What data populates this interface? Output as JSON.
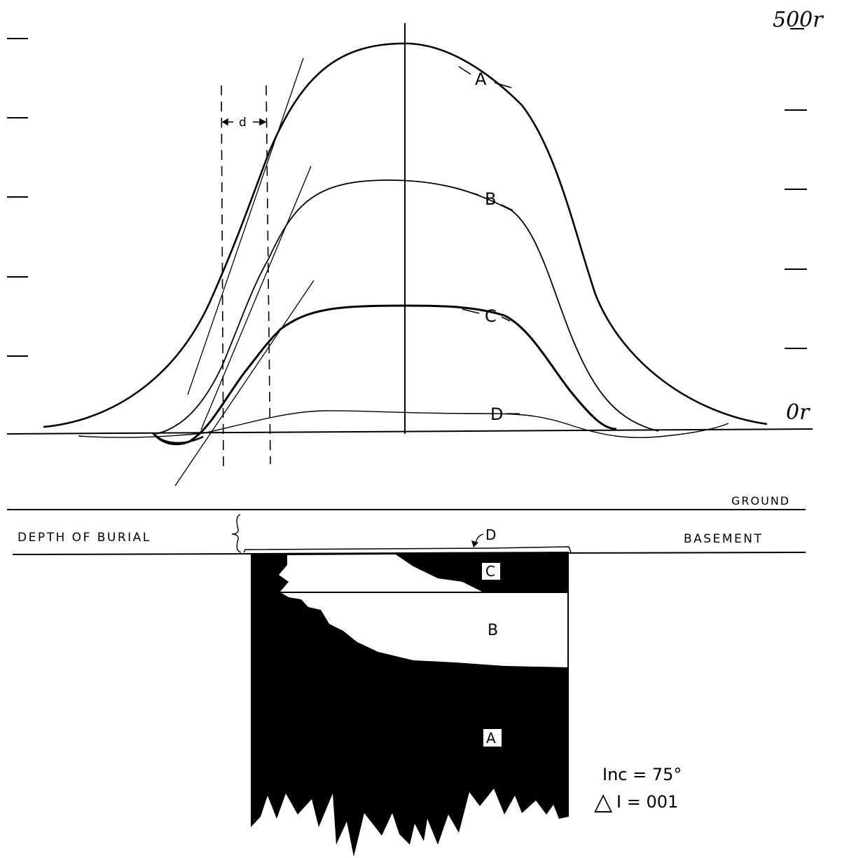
{
  "scale": {
    "top_label": "500r",
    "zero_label": "0r"
  },
  "curves": [
    {
      "id": "A",
      "label": "A"
    },
    {
      "id": "B",
      "label": "B"
    },
    {
      "id": "C",
      "label": "C"
    },
    {
      "id": "D",
      "label": "D"
    }
  ],
  "dimension": {
    "label": "d"
  },
  "section": {
    "ground_label": "GROUND",
    "depth_label": "DEPTH OF BURIAL",
    "basement_label": "BASEMENT",
    "marker_D": "D",
    "zone_labels": {
      "A": "A",
      "B": "B",
      "C": "C"
    }
  },
  "params": {
    "inc_text": "Inc = 75°",
    "delta_symbol": "△",
    "delta_text": "I = 001"
  }
}
